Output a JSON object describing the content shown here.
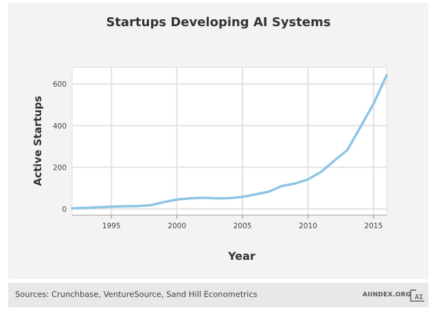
{
  "chart_data": {
    "type": "line",
    "title": "Startups Developing AI Systems",
    "xlabel": "Year",
    "ylabel": "Active Startups",
    "xlim": [
      1992,
      2016
    ],
    "ylim": [
      -30,
      680
    ],
    "xticks": [
      1995,
      2000,
      2005,
      2010,
      2015
    ],
    "yticks": [
      0,
      200,
      400,
      600
    ],
    "grid": true,
    "series": [
      {
        "x": [
          1992,
          1993,
          1994,
          1995,
          1996,
          1997,
          1998,
          1999,
          2000,
          2001,
          2002,
          2003,
          2004,
          2005,
          2006,
          2007,
          2008,
          2009,
          2010,
          2011,
          2012,
          2013,
          2014,
          2015,
          2016
        ],
        "values": [
          3,
          5,
          8,
          11,
          13,
          14,
          18,
          33,
          45,
          51,
          54,
          51,
          52,
          58,
          70,
          83,
          110,
          122,
          142,
          178,
          232,
          283,
          393,
          505,
          642
        ]
      }
    ],
    "color": "#8cc4e6"
  },
  "footer": {
    "source": "Sources: Crunchbase, VentureSource, Sand Hill Econometrics",
    "brand": "AIINDEX.ORG",
    "logo_text": "AI"
  }
}
